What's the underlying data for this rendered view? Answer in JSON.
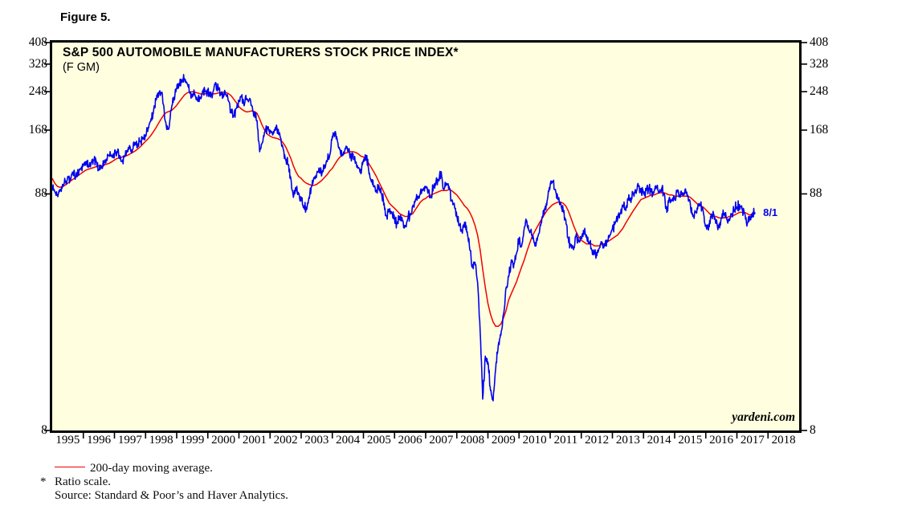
{
  "figure_label": "Figure 5.",
  "header": {
    "title": "S&P 500 AUTOMOBILE MANUFACTURERS STOCK PRICE INDEX*",
    "subtitle": "(F GM)"
  },
  "watermark": "yardeni.com",
  "end_label": "8/1",
  "footnotes": {
    "legend_label": "200-day moving average.",
    "asterisk": "*",
    "ratio_note": "Ratio scale.",
    "source": "Source: Standard & Poor’s and Haver Analytics."
  },
  "colors": {
    "plot_background": "#ffffe0",
    "frame": "#000000",
    "price_line": "#0000f0",
    "moving_average_line": "#f00000",
    "text": "#000000"
  },
  "chart_data": {
    "type": "line",
    "title": "S&P 500 Automobile Manufacturers Stock Price Index (F GM)",
    "scale": "log",
    "ylim": [
      8,
      408
    ],
    "y_ticks": [
      408,
      328,
      248,
      168,
      88,
      8
    ],
    "x_years": [
      1995,
      1996,
      1997,
      1998,
      1999,
      2000,
      2001,
      2002,
      2003,
      2004,
      2005,
      2006,
      2007,
      2008,
      2009,
      2010,
      2011,
      2012,
      2013,
      2014,
      2015,
      2016,
      2017,
      2018
    ],
    "x_start_year": 1995,
    "interval": "monthly",
    "last_point": "2017-08-01",
    "legend_position": "below-chart",
    "grid": false,
    "series": [
      {
        "name": "S&P 500 Automobile Manufacturers stock price index (daily)",
        "color": "#0000f0",
        "values": [
          95,
          90,
          87,
          92,
          97,
          100,
          105,
          103,
          108,
          104,
          110,
          114,
          118,
          120,
          117,
          121,
          124,
          122,
          112,
          116,
          120,
          124,
          130,
          128,
          132,
          135,
          130,
          122,
          130,
          137,
          142,
          138,
          148,
          144,
          150,
          155,
          160,
          172,
          185,
          200,
          230,
          240,
          246,
          215,
          175,
          170,
          210,
          235,
          255,
          270,
          277,
          283,
          270,
          245,
          235,
          242,
          228,
          235,
          250,
          248,
          250,
          235,
          248,
          272,
          260,
          240,
          235,
          240,
          225,
          205,
          195,
          210,
          225,
          235,
          215,
          230,
          228,
          215,
          200,
          185,
          135,
          148,
          165,
          170,
          168,
          160,
          172,
          165,
          155,
          140,
          125,
          118,
          103,
          85,
          92,
          88,
          85,
          78,
          77,
          85,
          95,
          104,
          108,
          112,
          108,
          118,
          122,
          130,
          158,
          165,
          150,
          138,
          130,
          140,
          135,
          128,
          132,
          122,
          115,
          108,
          122,
          130,
          112,
          100,
          95,
          90,
          95,
          88,
          80,
          70,
          75,
          72,
          68,
          65,
          70,
          67,
          64,
          68,
          72,
          78,
          82,
          86,
          90,
          92,
          95,
          92,
          85,
          95,
          100,
          102,
          110,
          92,
          98,
          95,
          82,
          80,
          70,
          64,
          60,
          66,
          60,
          50,
          42,
          44,
          36,
          22,
          11,
          17,
          16,
          12,
          10.8,
          15,
          19,
          21,
          26,
          34,
          38,
          45,
          43,
          48,
          56,
          52,
          62,
          67,
          60,
          58,
          53,
          55,
          62,
          70,
          76,
          84,
          96,
          100,
          92,
          83,
          80,
          75,
          68,
          56,
          52,
          50,
          58,
          55,
          56,
          60,
          58,
          54,
          50,
          48,
          47,
          51,
          54,
          52,
          54,
          58,
          62,
          65,
          68,
          72,
          78,
          76,
          84,
          82,
          88,
          90,
          95,
          93,
          88,
          91,
          93,
          90,
          89,
          95,
          90,
          93,
          88,
          73,
          85,
          82,
          84,
          90,
          87,
          89,
          92,
          87,
          80,
          70,
          73,
          79,
          80,
          74,
          64,
          61,
          70,
          72,
          66,
          64,
          69,
          71,
          69,
          67,
          72,
          75,
          77,
          79,
          75,
          72,
          65,
          70,
          72,
          73
        ]
      },
      {
        "name": "200-day moving average",
        "color": "#f00000",
        "values": [
          103,
          98,
          95,
          94,
          95,
          96,
          98,
          100,
          102,
          104,
          106,
          108,
          110,
          112,
          113,
          114,
          115,
          116,
          117,
          117,
          118,
          119,
          120,
          122,
          124,
          126,
          127,
          128,
          129,
          130,
          132,
          134,
          136,
          139,
          142,
          146,
          150,
          154,
          159,
          165,
          172,
          180,
          188,
          196,
          201,
          203,
          205,
          210,
          216,
          224,
          232,
          240,
          245,
          247,
          248,
          247,
          245,
          243,
          242,
          243,
          244,
          244,
          243,
          243,
          245,
          246,
          247,
          246,
          243,
          238,
          230,
          222,
          213,
          208,
          204,
          202,
          203,
          204,
          203,
          199,
          188,
          176,
          167,
          161,
          158,
          156,
          155,
          154,
          152,
          148,
          142,
          134,
          126,
          117,
          110,
          105,
          103,
          100,
          98,
          97,
          96,
          96,
          97,
          99,
          101,
          104,
          107,
          111,
          114,
          119,
          124,
          128,
          131,
          133,
          134,
          135,
          135,
          134,
          132,
          129,
          128,
          124,
          120,
          115,
          110,
          105,
          99,
          94,
          89,
          84,
          80,
          78,
          76,
          74,
          72,
          71,
          70,
          70,
          71,
          72,
          75,
          78,
          81,
          83,
          84,
          86,
          87,
          88,
          89,
          90,
          91,
          91,
          91,
          92,
          91,
          89,
          87,
          84,
          81,
          78,
          76,
          73,
          69,
          64,
          58,
          50,
          41,
          34,
          29,
          26,
          24,
          23,
          23,
          23.5,
          25,
          27,
          30,
          32,
          34,
          36,
          39,
          42,
          45,
          49,
          53,
          57,
          60,
          63,
          66,
          69,
          72,
          75,
          77,
          79,
          80,
          81,
          81,
          80,
          78,
          74,
          69,
          64,
          60,
          57,
          55,
          54,
          53,
          53,
          53,
          52,
          52,
          52,
          53,
          53,
          54,
          55,
          56,
          57,
          58,
          60,
          62,
          65,
          68,
          71,
          74,
          77,
          80,
          83,
          84,
          85,
          86,
          87,
          87,
          88,
          89,
          89,
          89,
          88,
          87,
          87,
          86,
          86,
          86,
          86,
          86,
          86,
          85,
          83,
          81,
          79,
          78,
          77,
          75,
          73,
          71,
          70,
          70,
          69,
          69,
          69,
          69,
          70,
          70,
          71,
          72,
          73,
          73,
          73,
          72,
          71,
          72,
          72
        ]
      }
    ]
  }
}
